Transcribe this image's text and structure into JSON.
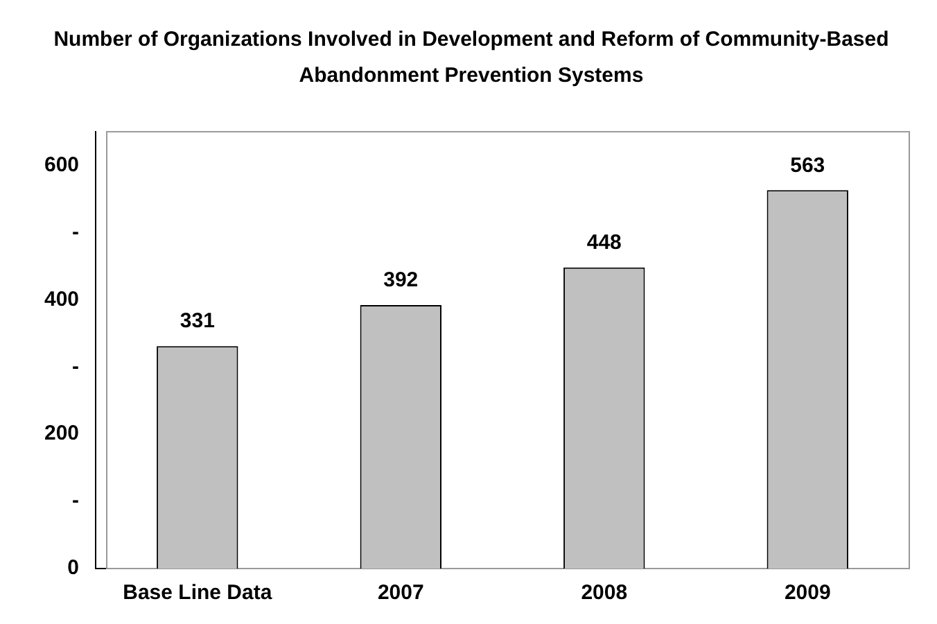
{
  "chart_data": {
    "type": "bar",
    "title": "Number of Organizations Involved in Development and Reform of Community-Based Abandonment Prevention Systems",
    "categories": [
      "Base Line Data",
      "2007",
      "2008",
      "2009"
    ],
    "values": [
      331,
      392,
      448,
      563
    ],
    "color": "#c0c0c0",
    "ylim": [
      0,
      650
    ],
    "yticks": [
      0,
      {
        "value": 100,
        "label": "-"
      },
      200,
      {
        "value": 300,
        "label": "-"
      },
      400,
      {
        "value": 500,
        "label": "-"
      },
      600
    ],
    "grid": false,
    "data_labels": true
  }
}
